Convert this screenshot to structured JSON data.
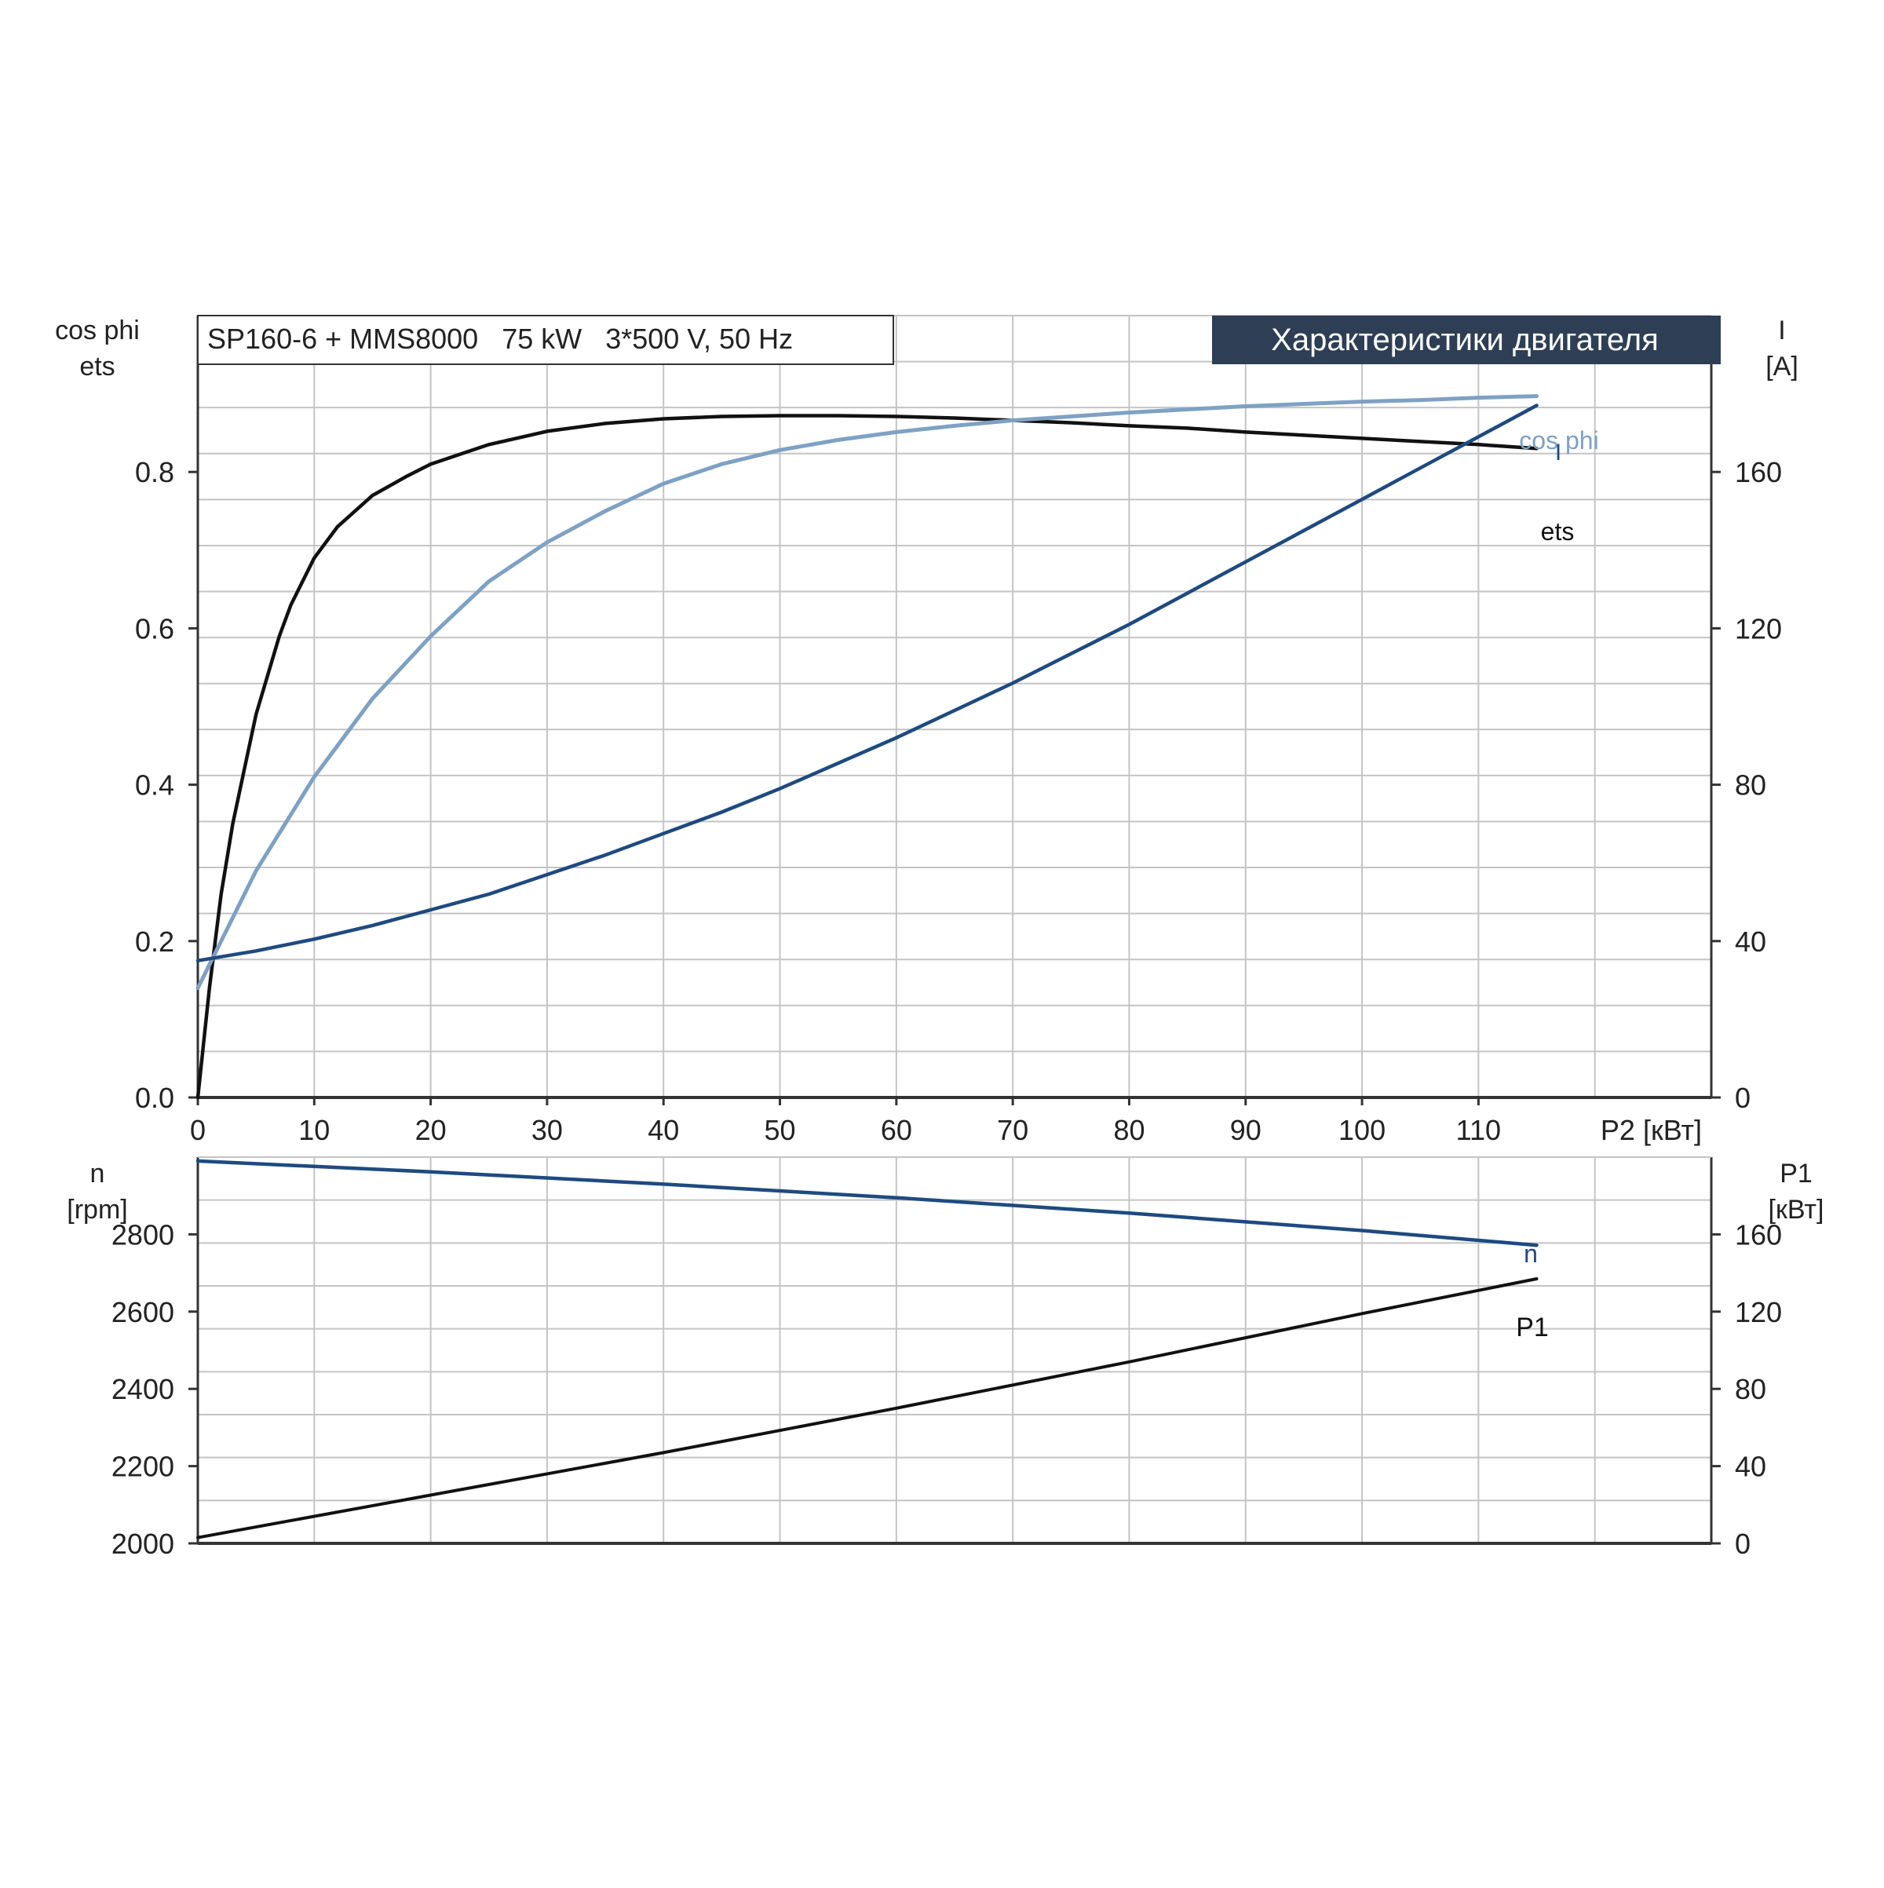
{
  "header": {
    "model": "SP160-6 + MMS8000   75 kW   3*500 V, 50 Hz",
    "title": "Характеристики двигателя"
  },
  "colors": {
    "ets": "#111111",
    "cosphi": "#7ea1c4",
    "current": "#1e4a80",
    "speed": "#1e4a80",
    "p1": "#111111",
    "grid": "#c4c4c4",
    "title_bg": "#2e3f55"
  },
  "chart_data": [
    {
      "type": "line",
      "x_ticks": [
        "0",
        "10",
        "20",
        "30",
        "40",
        "50",
        "60",
        "70",
        "80",
        "90",
        "100",
        "110"
      ],
      "x_unit": "P2 [кВт]",
      "xlim": [
        0,
        130
      ],
      "left_axis": {
        "label_line1": "cos phi",
        "label_line2": "ets",
        "ticks": [
          "0.0",
          "0.2",
          "0.4",
          "0.6",
          "0.8"
        ],
        "ylim": [
          0,
          1.0
        ]
      },
      "right_axis": {
        "label_line1": "I",
        "label_line2": "[A]",
        "ticks": [
          "0",
          "40",
          "80",
          "120",
          "160"
        ],
        "ylim": [
          0,
          200
        ]
      },
      "series": [
        {
          "name": "ets",
          "axis": "left",
          "x": [
            0,
            0.5,
            1,
            1.5,
            2,
            3,
            4,
            5,
            6,
            7,
            8,
            10,
            12,
            15,
            18,
            20,
            25,
            30,
            35,
            40,
            45,
            50,
            55,
            60,
            65,
            70,
            75,
            80,
            85,
            90,
            95,
            100,
            105,
            110,
            115
          ],
          "y": [
            0,
            0.07,
            0.14,
            0.2,
            0.26,
            0.35,
            0.42,
            0.49,
            0.54,
            0.59,
            0.63,
            0.69,
            0.73,
            0.77,
            0.795,
            0.81,
            0.835,
            0.852,
            0.862,
            0.868,
            0.871,
            0.872,
            0.872,
            0.871,
            0.869,
            0.866,
            0.863,
            0.859,
            0.856,
            0.851,
            0.847,
            0.843,
            0.839,
            0.835,
            0.83
          ]
        },
        {
          "name": "cos phi",
          "axis": "left",
          "x": [
            0,
            5,
            10,
            15,
            20,
            25,
            30,
            35,
            40,
            45,
            50,
            55,
            60,
            65,
            70,
            75,
            80,
            85,
            90,
            95,
            100,
            105,
            110,
            115
          ],
          "y": [
            0.14,
            0.29,
            0.41,
            0.51,
            0.59,
            0.66,
            0.71,
            0.75,
            0.785,
            0.81,
            0.828,
            0.841,
            0.851,
            0.859,
            0.866,
            0.871,
            0.876,
            0.88,
            0.884,
            0.887,
            0.89,
            0.892,
            0.895,
            0.897
          ]
        },
        {
          "name": "I",
          "axis": "right",
          "x": [
            0,
            5,
            10,
            15,
            20,
            25,
            30,
            35,
            40,
            45,
            50,
            55,
            60,
            65,
            70,
            75,
            80,
            85,
            90,
            95,
            100,
            105,
            110,
            115
          ],
          "y": [
            35,
            37.5,
            40.5,
            44,
            48,
            52,
            57,
            62,
            67.5,
            73,
            79,
            85.5,
            92,
            99,
            106,
            113.5,
            121,
            129,
            137,
            145,
            153,
            161,
            169,
            177
          ]
        }
      ]
    },
    {
      "type": "line",
      "x_ticks": [
        "0",
        "10",
        "20",
        "30",
        "40",
        "50",
        "60",
        "70",
        "80",
        "90",
        "100",
        "110"
      ],
      "xlim": [
        0,
        130
      ],
      "left_axis": {
        "label_line1": "n",
        "label_line2": "[rpm]",
        "ticks": [
          "2000",
          "2200",
          "2400",
          "2600",
          "2800"
        ],
        "ylim": [
          2000,
          3000
        ]
      },
      "right_axis": {
        "label_line1": "P1",
        "label_line2": "[кВт]",
        "ticks": [
          "0",
          "40",
          "80",
          "120",
          "160"
        ],
        "ylim": [
          0,
          200
        ]
      },
      "series": [
        {
          "name": "n",
          "axis": "left",
          "x": [
            0,
            20,
            40,
            60,
            80,
            100,
            115
          ],
          "y": [
            2990,
            2962,
            2930,
            2895,
            2855,
            2810,
            2772
          ]
        },
        {
          "name": "P1",
          "axis": "right",
          "x": [
            0,
            20,
            40,
            60,
            80,
            100,
            115
          ],
          "y": [
            3,
            25,
            47,
            70,
            94,
            119,
            137
          ]
        }
      ]
    }
  ]
}
